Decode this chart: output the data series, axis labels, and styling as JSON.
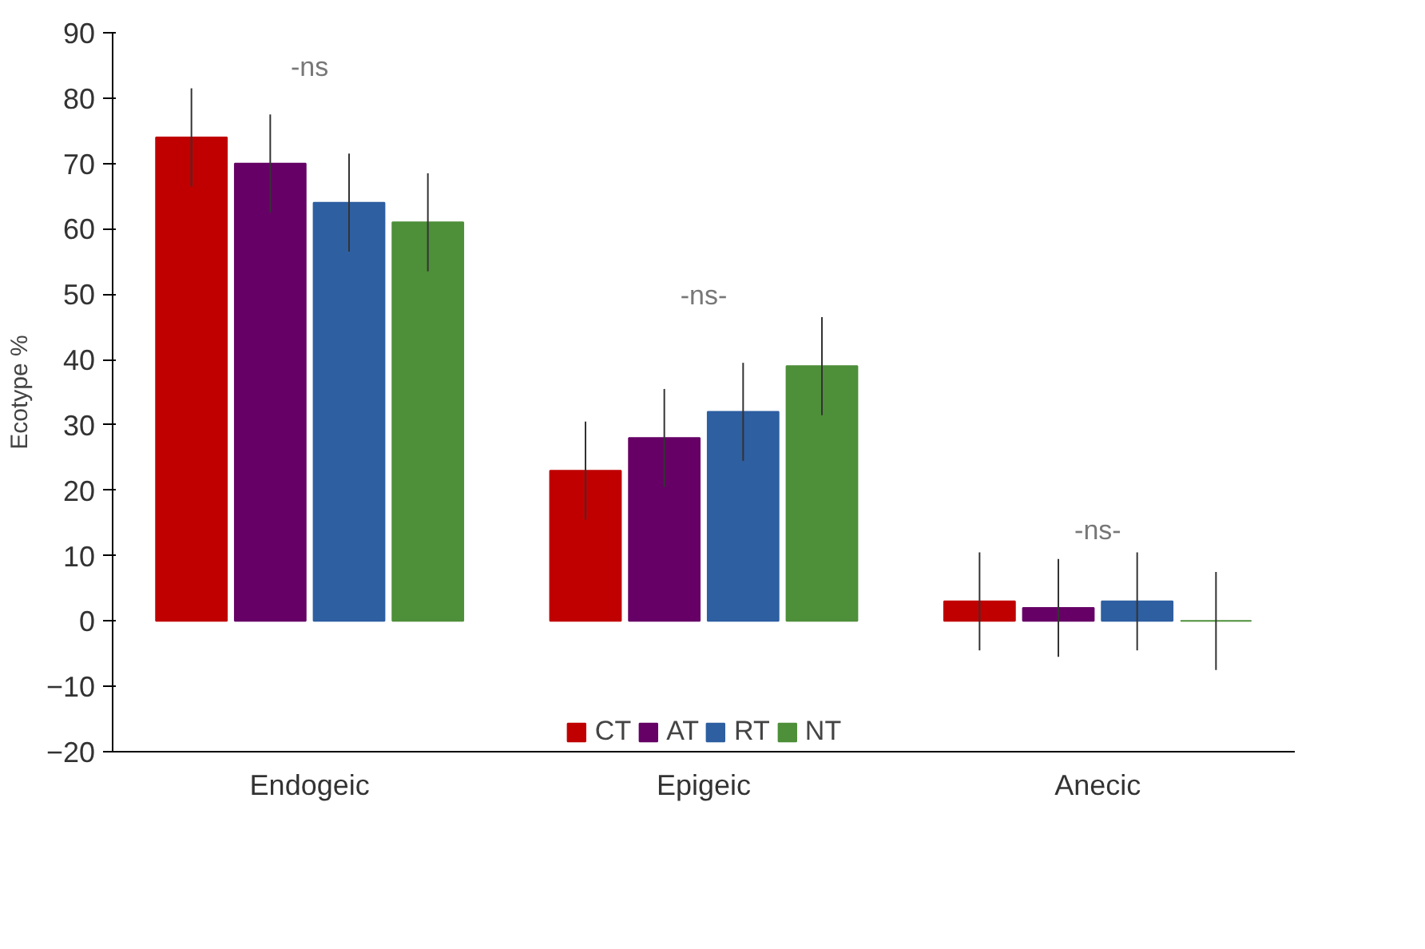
{
  "chart_data": {
    "type": "bar",
    "ylabel": "Ecotype %",
    "categories": [
      "Endogeic",
      "Epigeic",
      "Anecic"
    ],
    "series": [
      {
        "name": "CT",
        "color": "#c00000",
        "values": [
          74,
          23,
          3
        ],
        "errors": [
          7.5,
          7.5,
          7.5
        ]
      },
      {
        "name": "AT",
        "color": "#660066",
        "values": [
          70,
          28,
          2
        ],
        "errors": [
          7.5,
          7.5,
          7.5
        ]
      },
      {
        "name": "RT",
        "color": "#2e5fa1",
        "values": [
          64,
          32,
          3
        ],
        "errors": [
          7.5,
          7.5,
          7.5
        ]
      },
      {
        "name": "NT",
        "color": "#4e8f3a",
        "values": [
          61,
          39,
          0
        ],
        "errors": [
          7.5,
          7.5,
          7.5
        ]
      }
    ],
    "ylim": [
      -20,
      90
    ],
    "yticks": [
      -20,
      -10,
      0,
      10,
      20,
      30,
      40,
      50,
      60,
      70,
      80,
      90
    ],
    "grid": false,
    "legend": "bottom",
    "annotations": [
      "-ns",
      "-ns-",
      "-ns-"
    ]
  }
}
